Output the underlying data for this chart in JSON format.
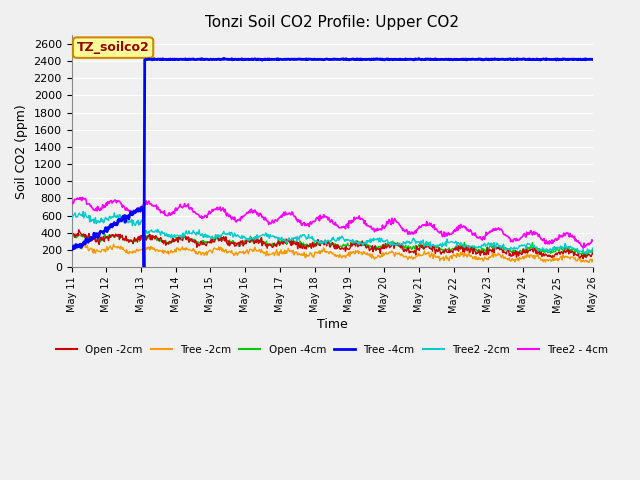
{
  "title": "Tonzi Soil CO2 Profile: Upper CO2",
  "xlabel": "Time",
  "ylabel": "Soil CO2 (ppm)",
  "ylim": [
    0,
    2700
  ],
  "yticks": [
    0,
    200,
    400,
    600,
    800,
    1000,
    1200,
    1400,
    1600,
    1800,
    2000,
    2200,
    2400,
    2600
  ],
  "background_color": "#f0f0f0",
  "plot_bg_color": "#f0f0f0",
  "legend_label": "TZ_soilco2",
  "legend_bg": "#ffff99",
  "legend_border": "#cc8800",
  "series_colors": {
    "Open-2cm": "#cc0000",
    "Tree-2cm": "#ff9900",
    "Open-4cm": "#00cc00",
    "Tree-4cm": "#0000ff",
    "Tree2-2cm": "#00cccc",
    "Tree2-4cm": "#ff00ff"
  },
  "series_linewidths": {
    "Open-2cm": 1.0,
    "Tree-2cm": 1.0,
    "Open-4cm": 1.0,
    "Tree-4cm": 2.0,
    "Tree2-2cm": 1.0,
    "Tree2-4cm": 1.2
  },
  "xtick_labels": [
    "May 11",
    "May 12",
    "May 13",
    "May 14",
    "May 15",
    "May 16",
    "May 17",
    "May 18",
    "May 19",
    "May 20",
    "May 21",
    "May 22",
    "May 23",
    "May 24",
    "May 25",
    "May 26"
  ]
}
